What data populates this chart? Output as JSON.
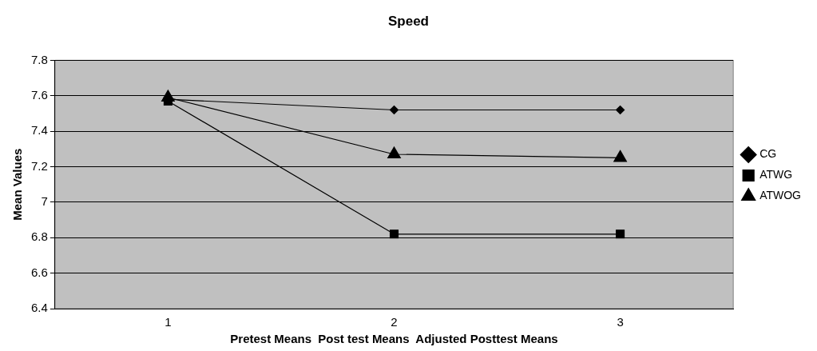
{
  "chart_data": {
    "type": "line",
    "title": "Speed",
    "xlabel": "Pretest Means  Post test Means  Adjusted Posttest Means",
    "ylabel": "Mean Values",
    "categories": [
      "1",
      "2",
      "3"
    ],
    "series": [
      {
        "name": "CG",
        "color": "#000000",
        "marker": "diamond",
        "values": [
          7.58,
          7.52,
          7.52
        ]
      },
      {
        "name": "ATWG",
        "color": "#000000",
        "marker": "square",
        "values": [
          7.57,
          6.82,
          6.82
        ]
      },
      {
        "name": "ATWOG",
        "color": "#000000",
        "marker": "triangle",
        "values": [
          7.59,
          7.27,
          7.25
        ]
      }
    ],
    "ylim": [
      6.4,
      7.8
    ],
    "yticks": [
      6.4,
      6.6,
      6.8,
      7,
      7.2,
      7.4,
      7.6,
      7.8
    ],
    "grid": "y",
    "legend": "right",
    "line_style": "solid"
  }
}
